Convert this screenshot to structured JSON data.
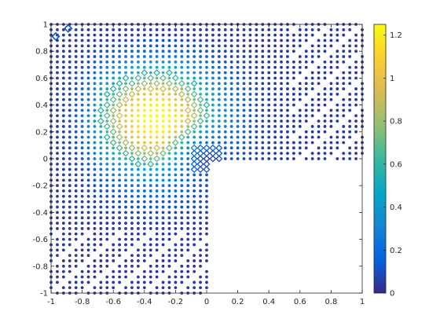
{
  "chart_data": {
    "type": "scatter",
    "title": "",
    "xlabel": "",
    "ylabel": "",
    "xlim": [
      -1,
      1
    ],
    "ylim": [
      -1,
      1
    ],
    "grid": false,
    "x_ticks": [
      "-1",
      "-0.8",
      "-0.6",
      "-0.4",
      "-0.2",
      "0",
      "0.2",
      "0.4",
      "0.6",
      "0.8",
      "1"
    ],
    "y_ticks": [
      "-1",
      "-0.8",
      "-0.6",
      "-0.4",
      "-0.2",
      "0",
      "0.2",
      "0.4",
      "0.6",
      "0.8",
      "1"
    ],
    "colorbar": {
      "range": [
        0,
        1.25
      ],
      "colormap": "parula",
      "ticks": [
        "0",
        "0.2",
        "0.4",
        "0.6",
        "0.8",
        "1",
        "1.2"
      ]
    },
    "domain": "L-shaped region [-1,1]x[-1,1] minus the quadrant x>0, y<0",
    "markers": {
      "dot": "small filled circles on the fine lattice points (node values)",
      "diamond": "diamond outlines (x-shaped clusters) at refined points along the level band"
    },
    "value_field": {
      "description": "scalar field peaking at about (-0.33, 0.30) with value ~1.25, decaying to ~0.1 near the outer boundary and to ~0 at the re-entrant corner (0,0)",
      "peak": {
        "x": -0.33,
        "y": 0.3,
        "value": 1.25
      },
      "corner": {
        "x": 0,
        "y": 0,
        "value": 0.05
      }
    }
  },
  "colors": {
    "parula_stops": [
      "#352a87",
      "#0363e1",
      "#1485d4",
      "#06a7c6",
      "#38b99e",
      "#92bf73",
      "#d9ba56",
      "#fcce2e",
      "#f9fb0e"
    ],
    "axis": "#262626",
    "background": "#ffffff"
  }
}
